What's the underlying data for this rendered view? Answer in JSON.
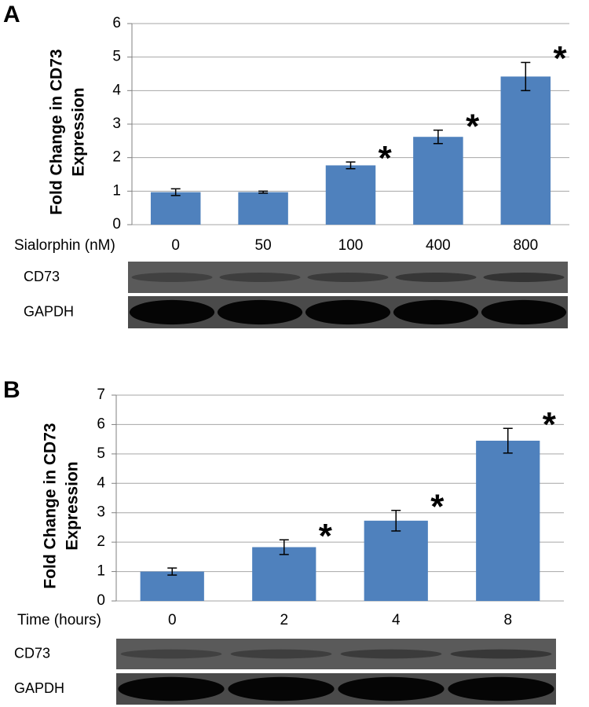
{
  "chart_data": [
    {
      "type": "bar",
      "panel_label": "A",
      "y_label": [
        "Fold Change in CD73",
        "Expression"
      ],
      "x_label": "Sialorphin (nM)",
      "categories": [
        "0",
        "50",
        "100",
        "400",
        "800"
      ],
      "values": [
        0.97,
        0.97,
        1.77,
        2.62,
        4.42
      ],
      "errors": [
        0.1,
        0.03,
        0.1,
        0.2,
        0.42
      ],
      "annotations": [
        null,
        null,
        "*",
        "*",
        "*"
      ],
      "color": "#4f81bd",
      "ylim": [
        0,
        6
      ],
      "yticks": [
        0,
        1,
        2,
        3,
        4,
        5,
        6
      ],
      "grid": true,
      "blot_labels": [
        "CD73",
        "GAPDH"
      ]
    },
    {
      "type": "bar",
      "panel_label": "B",
      "y_label": [
        "Fold Change in CD73",
        "Expression"
      ],
      "x_label": "Time (hours)",
      "categories": [
        "0",
        "2",
        "4",
        "8"
      ],
      "values": [
        1.0,
        1.83,
        2.73,
        5.45
      ],
      "errors": [
        0.12,
        0.25,
        0.35,
        0.42
      ],
      "annotations": [
        null,
        "*",
        "*",
        "*"
      ],
      "color": "#4f81bd",
      "ylim": [
        0,
        7
      ],
      "yticks": [
        0,
        1,
        2,
        3,
        4,
        5,
        6,
        7
      ],
      "grid": true,
      "blot_labels": [
        "CD73",
        "GAPDH"
      ]
    }
  ]
}
